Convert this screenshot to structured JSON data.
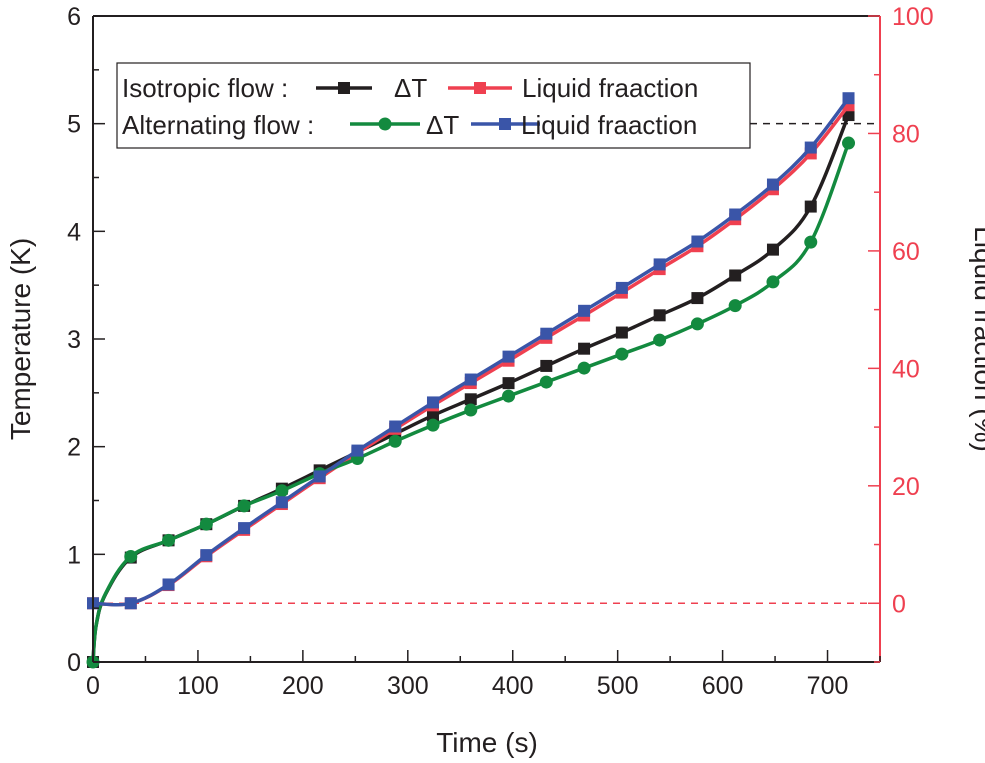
{
  "chart_data": {
    "type": "line",
    "xlabel": "Time (s)",
    "ylabel": "Temperature (K)",
    "y2label": "Liquid fraction (%)",
    "xlim": [
      0,
      750
    ],
    "ylim": [
      0,
      6
    ],
    "y2lim": [
      -10,
      100
    ],
    "xticks": [
      0,
      100,
      200,
      300,
      400,
      500,
      600,
      700
    ],
    "yticks": [
      0,
      1,
      2,
      3,
      4,
      5,
      6
    ],
    "y2ticks": [
      0,
      20,
      40,
      60,
      80,
      100
    ],
    "grid": false,
    "legend_placement": "top-left",
    "reference_lines": [
      {
        "axis": "left",
        "y": 5,
        "style": "dashed",
        "color": "#231f20"
      },
      {
        "axis": "right",
        "y": 0,
        "style": "dashed",
        "color": "#ef4050"
      }
    ],
    "legend": {
      "row1_label": "Isotropic flow :",
      "row2_label": "Alternating flow :",
      "dt_label": "ΔT",
      "lf_label": "Liquid fraaction"
    },
    "x": [
      0,
      36,
      72,
      108,
      144,
      180,
      216,
      252,
      288,
      324,
      360,
      396,
      432,
      468,
      504,
      540,
      576,
      612,
      648,
      684,
      720
    ],
    "series": [
      {
        "group": "Isotropic flow",
        "name": "ΔT",
        "axis": "left",
        "color": "#231f20",
        "marker": "square",
        "values": [
          0,
          0.97,
          1.13,
          1.28,
          1.45,
          1.61,
          1.78,
          1.95,
          2.12,
          2.29,
          2.44,
          2.59,
          2.75,
          2.91,
          3.06,
          3.22,
          3.38,
          3.59,
          3.83,
          4.23,
          5.08
        ]
      },
      {
        "group": "Isotropic flow",
        "name": "Liquid fraaction",
        "axis": "right",
        "color": "#ef4050",
        "marker": "square",
        "values": [
          0,
          0,
          3.1,
          8.0,
          12.5,
          16.9,
          21.3,
          25.6,
          29.7,
          33.7,
          37.5,
          41.3,
          45.2,
          49.0,
          52.9,
          56.9,
          60.8,
          65.4,
          70.5,
          76.6,
          84.8
        ]
      },
      {
        "group": "Alternating flow",
        "name": "ΔT",
        "axis": "left",
        "color": "#138a3f",
        "marker": "circle",
        "values": [
          0,
          0.98,
          1.13,
          1.28,
          1.45,
          1.59,
          1.75,
          1.89,
          2.05,
          2.2,
          2.34,
          2.47,
          2.6,
          2.73,
          2.86,
          2.99,
          3.14,
          3.31,
          3.53,
          3.9,
          4.82
        ]
      },
      {
        "group": "Alternating flow",
        "name": "Liquid fraaction",
        "axis": "right",
        "color": "#3a55a8",
        "marker": "square",
        "values": [
          0,
          0,
          3.2,
          8.2,
          12.8,
          17.2,
          21.6,
          26.0,
          30.1,
          34.2,
          38.1,
          42.0,
          45.9,
          49.8,
          53.7,
          57.7,
          61.6,
          66.2,
          71.3,
          77.6,
          86.0
        ]
      }
    ]
  }
}
